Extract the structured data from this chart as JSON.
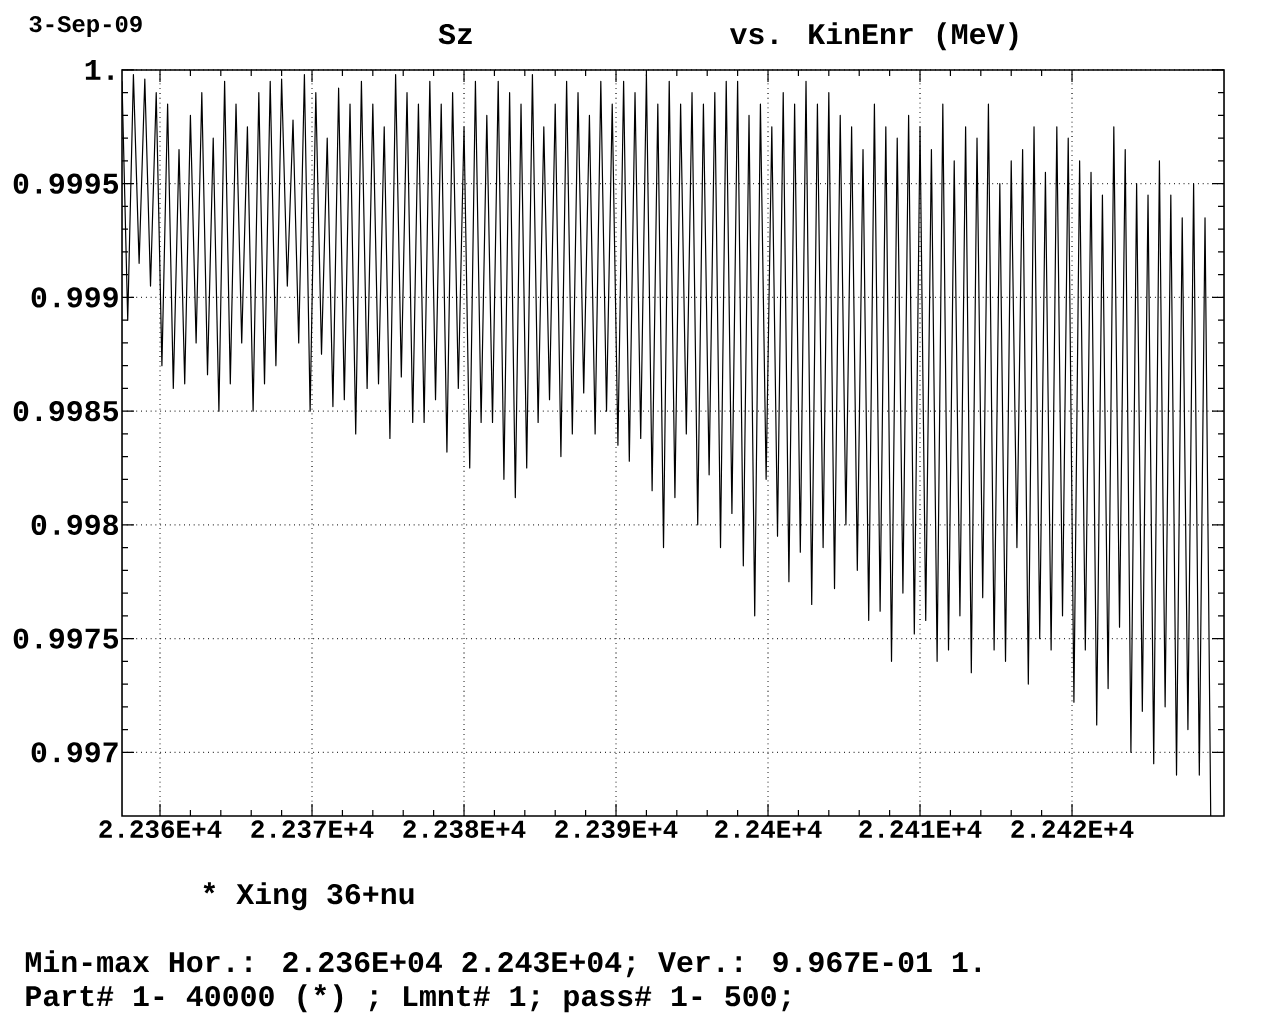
{
  "chart_data": {
    "type": "line",
    "ylabel": "Sz",
    "xlabel": "vs. KinEnr (MeV)",
    "annotations": [
      "3-Sep-09",
      "* Xing 36+nu",
      "Min-max Hor.: 2.236E+04 2.243E+04; Ver.: 9.967E-01 1.",
      "Part# 1- 40000 (*) ; Lmnt# 1; pass# 1- 500;"
    ],
    "color": "#000000",
    "grid": true,
    "xlim": [
      22357.5,
      22430
    ],
    "ylim": [
      0.99672,
      1
    ],
    "xticks": [
      {
        "value": 22360,
        "label": "2.236E+4"
      },
      {
        "value": 22370,
        "label": "2.237E+4"
      },
      {
        "value": 22380,
        "label": "2.238E+4"
      },
      {
        "value": 22390,
        "label": "2.239E+4"
      },
      {
        "value": 22400,
        "label": "2.24E+4"
      },
      {
        "value": 22410,
        "label": "2.241E+4"
      },
      {
        "value": 22420,
        "label": "2.242E+4"
      }
    ],
    "yticks": [
      0.997,
      0.9975,
      0.998,
      0.9985,
      0.999,
      0.9995,
      {
        "value": 1,
        "label": "1."
      }
    ],
    "x": [
      22357.5,
      22357.875,
      22358.25,
      22358.625,
      22359,
      22359.375,
      22359.75,
      22360.125,
      22360.5,
      22360.875,
      22361.25,
      22361.625,
      22362,
      22362.375,
      22362.75,
      22363.125,
      22363.5,
      22363.875,
      22364.25,
      22364.625,
      22365,
      22365.375,
      22365.75,
      22366.125,
      22366.5,
      22366.875,
      22367.25,
      22367.625,
      22368,
      22368.375,
      22368.75,
      22369.125,
      22369.5,
      22369.875,
      22370.25,
      22370.625,
      22371,
      22371.375,
      22371.75,
      22372.125,
      22372.5,
      22372.875,
      22373.25,
      22373.625,
      22374,
      22374.375,
      22374.75,
      22375.125,
      22375.5,
      22375.875,
      22376.25,
      22376.625,
      22377,
      22377.375,
      22377.75,
      22378.125,
      22378.5,
      22378.875,
      22379.25,
      22379.625,
      22380,
      22380.375,
      22380.75,
      22381.125,
      22381.5,
      22381.875,
      22382.25,
      22382.625,
      22383,
      22383.375,
      22383.75,
      22384.125,
      22384.5,
      22384.875,
      22385.25,
      22385.625,
      22386,
      22386.375,
      22386.75,
      22387.125,
      22387.5,
      22387.875,
      22388.25,
      22388.625,
      22389,
      22389.375,
      22389.75,
      22390.125,
      22390.5,
      22390.875,
      22391.25,
      22391.625,
      22392,
      22392.375,
      22392.75,
      22393.125,
      22393.5,
      22393.875,
      22394.25,
      22394.625,
      22395,
      22395.375,
      22395.75,
      22396.125,
      22396.5,
      22396.875,
      22397.25,
      22397.625,
      22398,
      22398.375,
      22398.75,
      22399.125,
      22399.5,
      22399.875,
      22400.25,
      22400.625,
      22401,
      22401.375,
      22401.75,
      22402.125,
      22402.5,
      22402.875,
      22403.25,
      22403.625,
      22404,
      22404.375,
      22404.75,
      22405.125,
      22405.5,
      22405.875,
      22406.25,
      22406.625,
      22407,
      22407.375,
      22407.75,
      22408.125,
      22408.5,
      22408.875,
      22409.25,
      22409.625,
      22410,
      22410.375,
      22410.75,
      22411.125,
      22411.5,
      22411.875,
      22412.25,
      22412.625,
      22413,
      22413.375,
      22413.75,
      22414.125,
      22414.5,
      22414.875,
      22415.25,
      22415.625,
      22416,
      22416.375,
      22416.75,
      22417.125,
      22417.5,
      22417.875,
      22418.25,
      22418.625,
      22419,
      22419.375,
      22419.75,
      22420.125,
      22420.5,
      22420.875,
      22421.25,
      22421.625,
      22422,
      22422.375,
      22422.75,
      22423.125,
      22423.5,
      22423.875,
      22424.25,
      22424.625,
      22425,
      22425.375,
      22425.75,
      22426.125,
      22426.5,
      22426.875,
      22427.25,
      22427.625,
      22428,
      22428.375,
      22428.75,
      22429.125
    ],
    "values": [
      0.99995,
      0.9989,
      0.99998,
      0.99915,
      0.99996,
      0.99905,
      0.9999,
      0.9987,
      0.99985,
      0.9986,
      0.99965,
      0.99862,
      0.9998,
      0.9988,
      0.9999,
      0.99866,
      0.9997,
      0.9985,
      0.99995,
      0.99862,
      0.99985,
      0.9988,
      0.99975,
      0.9985,
      0.9999,
      0.99862,
      0.99995,
      0.9987,
      0.99996,
      0.99905,
      0.99978,
      0.9988,
      0.99998,
      0.9985,
      0.9999,
      0.99875,
      0.9997,
      0.99852,
      0.99992,
      0.99855,
      0.99985,
      0.9984,
      0.99995,
      0.9986,
      0.99985,
      0.99862,
      0.99975,
      0.99838,
      0.99998,
      0.99865,
      0.9999,
      0.99845,
      0.99985,
      0.99845,
      0.99995,
      0.99855,
      0.99985,
      0.99832,
      0.9999,
      0.9986,
      0.99975,
      0.99825,
      0.99995,
      0.99845,
      0.9998,
      0.99845,
      0.99995,
      0.9982,
      0.9999,
      0.99812,
      0.99985,
      0.99825,
      0.99998,
      0.99845,
      0.99975,
      0.99855,
      0.99985,
      0.9983,
      0.99995,
      0.9984,
      0.9999,
      0.99858,
      0.9998,
      0.9984,
      0.99995,
      0.9985,
      0.99985,
      0.99835,
      0.99995,
      0.99828,
      0.9999,
      0.99838,
      0.99998,
      0.99815,
      0.99985,
      0.9979,
      0.99995,
      0.99812,
      0.99985,
      0.9984,
      0.9999,
      0.998,
      0.99985,
      0.99822,
      0.9999,
      0.9979,
      0.99995,
      0.99805,
      0.99995,
      0.99782,
      0.9998,
      0.9976,
      0.99985,
      0.9982,
      0.99975,
      0.99795,
      0.9999,
      0.99775,
      0.99985,
      0.99788,
      0.99995,
      0.99765,
      0.99985,
      0.9979,
      0.9999,
      0.99772,
      0.9998,
      0.998,
      0.99975,
      0.9978,
      0.99965,
      0.99758,
      0.99985,
      0.99762,
      0.99975,
      0.9974,
      0.9997,
      0.9977,
      0.9998,
      0.99752,
      0.99975,
      0.99758,
      0.99965,
      0.9974,
      0.99985,
      0.99745,
      0.9996,
      0.9976,
      0.99975,
      0.99735,
      0.9997,
      0.99768,
      0.99985,
      0.99745,
      0.9995,
      0.9974,
      0.9996,
      0.9979,
      0.99965,
      0.9973,
      0.99975,
      0.9975,
      0.99955,
      0.99745,
      0.99975,
      0.9976,
      0.9997,
      0.99722,
      0.9996,
      0.99745,
      0.99955,
      0.99712,
      0.99945,
      0.99728,
      0.99975,
      0.99755,
      0.99965,
      0.997,
      0.9995,
      0.99718,
      0.99945,
      0.99695,
      0.9996,
      0.9972,
      0.99945,
      0.9969,
      0.99935,
      0.9971,
      0.9995,
      0.9969,
      0.99935,
      0.99672
    ]
  }
}
